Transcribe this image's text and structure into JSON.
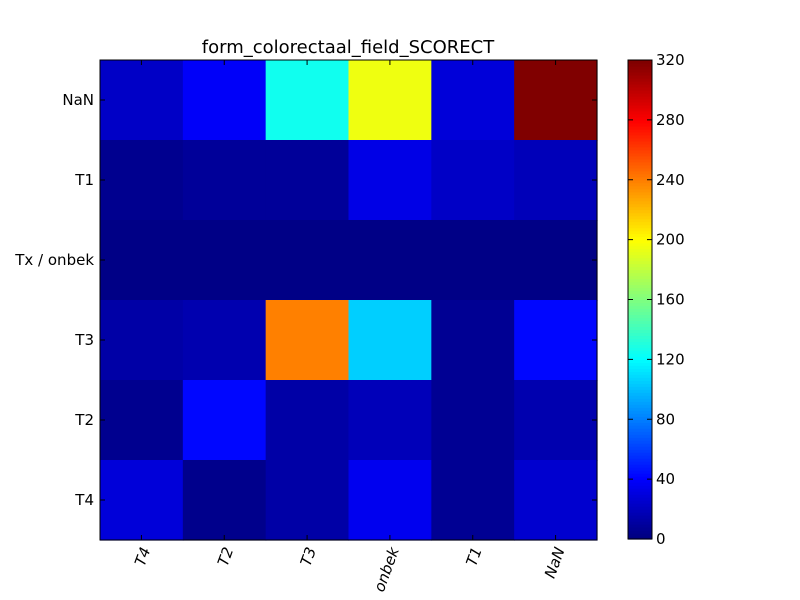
{
  "chart_data": {
    "type": "heatmap",
    "title": "form_colorectaal_field_SCORECT",
    "x_categories": [
      "T4",
      "T2",
      "T3",
      "onbek",
      "T1",
      "NaN"
    ],
    "y_categories": [
      "NaN",
      "T1",
      "Tx / onbek",
      "T3",
      "T2",
      "T4"
    ],
    "values": [
      [
        22,
        38,
        125,
        195,
        28,
        320
      ],
      [
        5,
        8,
        8,
        32,
        22,
        18
      ],
      [
        2,
        2,
        2,
        2,
        2,
        2
      ],
      [
        12,
        15,
        240,
        105,
        6,
        42
      ],
      [
        5,
        42,
        12,
        18,
        6,
        15
      ],
      [
        28,
        4,
        12,
        35,
        6,
        25
      ]
    ],
    "colormap": "jet",
    "vmin": 0,
    "vmax": 320,
    "colorbar_ticks": [
      0,
      40,
      80,
      120,
      160,
      200,
      240,
      280,
      320
    ],
    "xtick_rotation": "70deg"
  }
}
